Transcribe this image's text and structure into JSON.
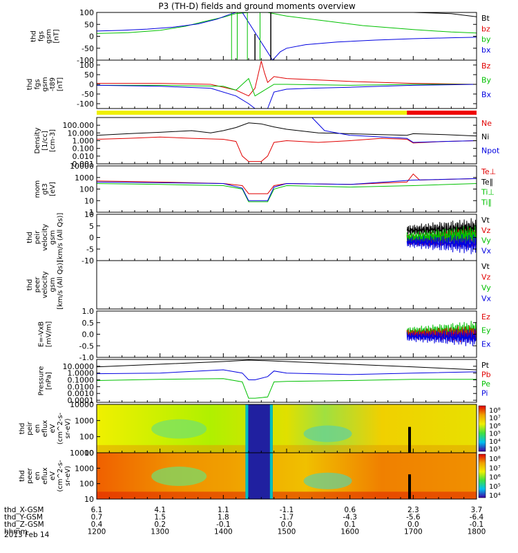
{
  "title": "P3 (TH-D) fields and ground moments overview",
  "chart_data": [
    {
      "type": "line",
      "ylabel": [
        "thd",
        "fgs",
        "gsm",
        "[nT]"
      ],
      "ylim": [
        -100,
        100
      ],
      "yticks": [
        "100",
        "50",
        "0",
        "-50",
        "-100"
      ],
      "legend": [
        {
          "label": "Bt",
          "color": "#000000"
        },
        {
          "label": "bz",
          "color": "#e00000"
        },
        {
          "label": "by",
          "color": "#00c000"
        },
        {
          "label": "bx",
          "color": "#0000e0"
        }
      ],
      "series": [
        {
          "name": "Bt",
          "color": "#000000",
          "x": [
            1200,
            1280,
            1360,
            1400,
            1460,
            1500,
            1600,
            1700,
            1760,
            1800
          ],
          "y": [
            100,
            100,
            100,
            100,
            100,
            100,
            100,
            100,
            95,
            82
          ]
        },
        {
          "name": "by",
          "color": "#00c000",
          "x": [
            1200,
            1250,
            1300,
            1340,
            1370,
            1400,
            1420,
            1440,
            1450,
            1470,
            1480,
            1500,
            1560,
            1620,
            1700,
            1760,
            1800
          ],
          "y": [
            12,
            15,
            25,
            42,
            62,
            80,
            95,
            100,
            100,
            100,
            95,
            85,
            65,
            45,
            28,
            18,
            14
          ]
        },
        {
          "name": "bx",
          "color": "#0000e0",
          "x": [
            1200,
            1240,
            1280,
            1320,
            1360,
            1390,
            1410,
            1420,
            1430,
            1478,
            1490,
            1500,
            1530,
            1580,
            1640,
            1700,
            1760,
            1800
          ],
          "y": [
            22,
            25,
            30,
            38,
            52,
            72,
            92,
            100,
            100,
            -100,
            -65,
            -50,
            -35,
            -24,
            -16,
            -10,
            -6,
            -4
          ]
        }
      ]
    },
    {
      "type": "line",
      "ylabel": [
        "thd",
        "fgs",
        "gsm",
        "-t89",
        "[nT]"
      ],
      "ylim": [
        -125,
        125
      ],
      "yticks": [
        "100",
        "50",
        "0",
        "-50",
        "-100"
      ],
      "legend": [
        {
          "label": "Bz",
          "color": "#e00000"
        },
        {
          "label": "By",
          "color": "#00c000"
        },
        {
          "label": "Bx",
          "color": "#0000e0"
        }
      ],
      "series": [
        {
          "name": "Bz",
          "color": "#e00000",
          "x": [
            1200,
            1300,
            1380,
            1420,
            1440,
            1450,
            1460,
            1465,
            1470,
            1480,
            1500,
            1600,
            1700,
            1800
          ],
          "y": [
            5,
            5,
            0,
            -30,
            -60,
            -20,
            120,
            60,
            10,
            40,
            30,
            15,
            5,
            0
          ]
        },
        {
          "name": "By",
          "color": "#00c000",
          "x": [
            1200,
            1300,
            1400,
            1420,
            1440,
            1450,
            1480,
            1500,
            1600,
            1700,
            1800
          ],
          "y": [
            -5,
            -5,
            -10,
            -30,
            30,
            -60,
            0,
            0,
            -5,
            0,
            0
          ]
        },
        {
          "name": "Bx",
          "color": "#0000e0",
          "x": [
            1200,
            1300,
            1380,
            1420,
            1440,
            1450,
            1470,
            1480,
            1500,
            1540,
            1600,
            1700,
            1800
          ],
          "y": [
            -5,
            -10,
            -20,
            -60,
            -100,
            -125,
            -125,
            -40,
            -25,
            -20,
            -15,
            -5,
            0
          ]
        }
      ]
    },
    {
      "type": "line",
      "ylabel": [
        "Density",
        "[1/cc]",
        "[cm-3]"
      ],
      "ylog": true,
      "ylim": [
        0.001,
        1000
      ],
      "yticks": [
        "100.000",
        "10.000",
        "1.000",
        "0.100",
        "0.010",
        "0.001"
      ],
      "legend": [
        {
          "label": "Ne",
          "color": "#e00000"
        },
        {
          "label": "Ni",
          "color": "#000000"
        },
        {
          "label": "Npot",
          "color": "#0000e0"
        }
      ],
      "series": [
        {
          "name": "Ni",
          "color": "#000000",
          "x": [
            1200,
            1250,
            1300,
            1350,
            1380,
            1400,
            1420,
            1440,
            1460,
            1480,
            1500,
            1550,
            1600,
            1650,
            1690,
            1700,
            1750,
            1800
          ],
          "y": [
            5,
            8,
            12,
            20,
            10,
            20,
            50,
            200,
            150,
            60,
            30,
            10,
            8,
            6,
            5,
            8,
            6,
            4
          ]
        },
        {
          "name": "Ne",
          "color": "#e00000",
          "x": [
            1200,
            1250,
            1300,
            1350,
            1400,
            1420,
            1430,
            1440,
            1450,
            1460,
            1470,
            1480,
            1500,
            1550,
            1600,
            1650,
            1690,
            1700,
            1750,
            1800
          ],
          "y": [
            1.5,
            2,
            3,
            2,
            1.5,
            0.8,
            0.01,
            0.002,
            0.002,
            0.002,
            0.01,
            0.6,
            1,
            0.6,
            1,
            2,
            1.5,
            0.5,
            0.8,
            1
          ]
        },
        {
          "name": "Npot",
          "color": "#0000e0",
          "x": [
            1200,
            1300,
            1400,
            1440,
            1500,
            1540,
            1560,
            1600,
            1690,
            1700,
            1750,
            1800
          ],
          "y": [
            1000,
            1000,
            1000,
            1000,
            1000,
            1000,
            20,
            5,
            2,
            0.6,
            0.8,
            1
          ]
        }
      ]
    },
    {
      "type": "line",
      "ylabel": [
        "mom",
        "gt3",
        "[eV]"
      ],
      "ylog": true,
      "ylim": [
        1,
        10000
      ],
      "yticks": [
        "10000",
        "1000",
        "100",
        "10",
        "1"
      ],
      "legend": [
        {
          "label": "Te⊥",
          "color": "#e00000"
        },
        {
          "label": "Te∥",
          "color": "#000000"
        },
        {
          "label": "Ti⊥",
          "color": "#00c000"
        },
        {
          "label": "Ti∥",
          "color": "#00c000"
        }
      ],
      "series": [
        {
          "name": "Te⊥",
          "color": "#e00000",
          "x": [
            1200,
            1300,
            1400,
            1430,
            1440,
            1470,
            1480,
            1500,
            1600,
            1690,
            1700,
            1710,
            1800
          ],
          "y": [
            500,
            400,
            300,
            200,
            40,
            40,
            200,
            300,
            250,
            400,
            2000,
            600,
            800
          ]
        },
        {
          "name": "Ti∥",
          "color": "#00c000",
          "x": [
            1200,
            1300,
            1400,
            1430,
            1440,
            1470,
            1480,
            1500,
            1600,
            1700,
            1800
          ],
          "y": [
            300,
            250,
            200,
            100,
            8,
            8,
            100,
            200,
            150,
            200,
            300
          ]
        },
        {
          "name": "Ti⊥",
          "color": "#0000e0",
          "x": [
            1200,
            1300,
            1400,
            1430,
            1440,
            1470,
            1480,
            1500,
            1600,
            1700,
            1800
          ],
          "y": [
            400,
            350,
            300,
            120,
            10,
            10,
            150,
            300,
            250,
            600,
            800
          ]
        }
      ]
    },
    {
      "type": "line",
      "ylabel": [
        "thd",
        "peir",
        "velocity",
        "gsm",
        "[km/s (All Qs)]"
      ],
      "ylim": [
        -10,
        10
      ],
      "yticks": [
        "10",
        "5",
        "0",
        "-5",
        "-10"
      ],
      "legend": [
        {
          "label": "Vt",
          "color": "#000000"
        },
        {
          "label": "Vz",
          "color": "#e00000"
        },
        {
          "label": "Vy",
          "color": "#00c000"
        },
        {
          "label": "Vx",
          "color": "#0000e0"
        }
      ],
      "series": [
        {
          "name": "Vt",
          "color": "#000000",
          "x": [
            1690,
            1800
          ],
          "y": [
            3,
            4
          ]
        },
        {
          "name": "Vz",
          "color": "#e00000",
          "x": [
            1690,
            1800
          ],
          "y": [
            -1,
            0
          ]
        },
        {
          "name": "Vy",
          "color": "#00c000",
          "x": [
            1690,
            1800
          ],
          "y": [
            0,
            1
          ]
        },
        {
          "name": "Vx",
          "color": "#0000e0",
          "x": [
            1690,
            1800
          ],
          "y": [
            -2,
            -3
          ]
        }
      ]
    },
    {
      "type": "line",
      "ylabel": [
        "thd",
        "peer",
        "velocity",
        "gsm",
        "[km/s (All Qs)]"
      ],
      "ylim": [
        -10,
        10
      ],
      "yticks": [],
      "legend": [
        {
          "label": "Vt",
          "color": "#000000"
        },
        {
          "label": "Vz",
          "color": "#e00000"
        },
        {
          "label": "Vy",
          "color": "#00c000"
        },
        {
          "label": "Vx",
          "color": "#0000e0"
        }
      ],
      "series": []
    },
    {
      "type": "line",
      "ylabel": [
        "E=-VxB",
        "[mV/m]"
      ],
      "ylim": [
        -1,
        1
      ],
      "yticks": [
        "1.0",
        "0.5",
        "0.0",
        "-0.5",
        "-1.0"
      ],
      "legend": [
        {
          "label": "Ez",
          "color": "#e00000"
        },
        {
          "label": "Ey",
          "color": "#00c000"
        },
        {
          "label": "Ex",
          "color": "#0000e0"
        }
      ],
      "series": [
        {
          "name": "Ey",
          "color": "#00c000",
          "x": [
            1690,
            1800
          ],
          "y": [
            0.1,
            0.2
          ]
        },
        {
          "name": "Ez",
          "color": "#e00000",
          "x": [
            1690,
            1800
          ],
          "y": [
            0,
            0
          ]
        },
        {
          "name": "Ex",
          "color": "#0000e0",
          "x": [
            1690,
            1800
          ],
          "y": [
            -0.1,
            -0.15
          ]
        }
      ]
    },
    {
      "type": "line",
      "ylabel": [
        "Pressure",
        "[nPa]"
      ],
      "ylog": true,
      "ylim": [
        5e-05,
        100
      ],
      "yticks": [
        "10.0000",
        "1.0000",
        "0.1000",
        "0.0100",
        "0.0010",
        "0.0001"
      ],
      "legend": [
        {
          "label": "Pt",
          "color": "#000000"
        },
        {
          "label": "Pb",
          "color": "#e00000"
        },
        {
          "label": "Pe",
          "color": "#00c000"
        },
        {
          "label": "Pi",
          "color": "#0000e0"
        }
      ],
      "series": [
        {
          "name": "Pt",
          "color": "#000000",
          "x": [
            1200,
            1300,
            1400,
            1440,
            1480,
            1500,
            1600,
            1700,
            1800
          ],
          "y": [
            8,
            20,
            50,
            80,
            60,
            50,
            20,
            8,
            3
          ]
        },
        {
          "name": "Pi",
          "color": "#0000e0",
          "x": [
            1200,
            1300,
            1400,
            1430,
            1440,
            1450,
            1470,
            1480,
            1500,
            1600,
            1700,
            1800
          ],
          "y": [
            0.8,
            1,
            3,
            1,
            0.1,
            0.1,
            0.3,
            2,
            1,
            0.6,
            1,
            1.5
          ]
        },
        {
          "name": "Pe",
          "color": "#00c000",
          "x": [
            1200,
            1300,
            1400,
            1430,
            1440,
            1450,
            1470,
            1480,
            1500,
            1600,
            1700,
            1800
          ],
          "y": [
            0.08,
            0.12,
            0.15,
            0.05,
            0.0002,
            0.0002,
            0.0003,
            0.05,
            0.06,
            0.08,
            0.12,
            0.12
          ]
        }
      ]
    },
    {
      "type": "heatmap",
      "ylabel": [
        "thd",
        "peir",
        "en",
        "eflux",
        "eV",
        "(cm^2-s-",
        "sr-eV)"
      ],
      "ylog": true,
      "ylim": [
        10,
        10000
      ],
      "yticks": [
        "10000",
        "1000",
        "100",
        "10"
      ],
      "colorbar_ticks": [
        "10⁸",
        "10⁷",
        "10⁶",
        "10⁵",
        "10⁴",
        "10³"
      ]
    },
    {
      "type": "heatmap",
      "ylabel": [
        "thd",
        "peer",
        "en",
        "eflux",
        "eV",
        "(cm^2-s-",
        "sr-eV)"
      ],
      "ylog": true,
      "ylim": [
        10,
        10000
      ],
      "yticks": [
        "10000",
        "1000",
        "100",
        "10"
      ],
      "colorbar_ticks": [
        "10⁸",
        "10⁷",
        "10⁶",
        "10⁵",
        "10⁴"
      ]
    }
  ],
  "xaxis": {
    "rows": [
      {
        "label": "thd_X-GSM",
        "values": [
          "6.1",
          "4.1",
          "1.1",
          "-1.1",
          "0.6",
          "2.3",
          "3.7"
        ]
      },
      {
        "label": "thd_Y-GSM",
        "values": [
          "0.7",
          "1.5",
          "1.8",
          "-1.7",
          "-4.3",
          "-5.6",
          "-6.4"
        ]
      },
      {
        "label": "thd_Z-GSM",
        "values": [
          "0.4",
          "0.2",
          "-0.1",
          "0.0",
          "0.1",
          "0.0",
          "-0.1"
        ]
      },
      {
        "label": "hhmm",
        "values": [
          "1200",
          "1300",
          "1400",
          "1500",
          "1600",
          "1700",
          "1800"
        ]
      }
    ],
    "date": "2013 Feb 14"
  }
}
